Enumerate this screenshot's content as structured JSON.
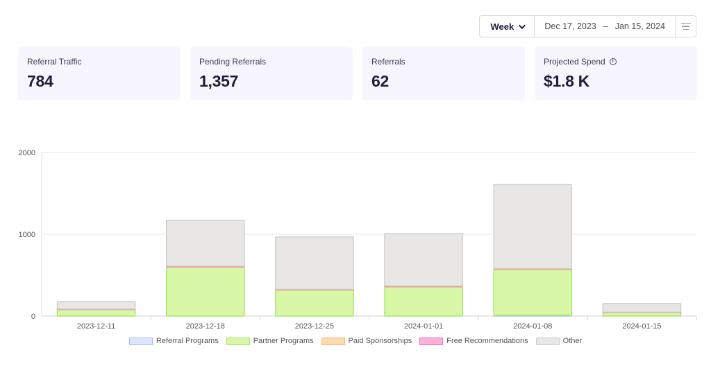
{
  "toolbar": {
    "period_label": "Week",
    "date_start": "Dec 17, 2023",
    "date_separator": "–",
    "date_end": "Jan 15, 2024"
  },
  "cards": [
    {
      "label": "Referral Traffic",
      "value": "784"
    },
    {
      "label": "Pending Referrals",
      "value": "1,357"
    },
    {
      "label": "Referrals",
      "value": "62"
    },
    {
      "label": "Projected Spend",
      "value": "$1.8 K",
      "info_icon": "info-icon"
    }
  ],
  "chart_data": {
    "type": "bar",
    "stacked": true,
    "categories": [
      "2023-12-11",
      "2023-12-18",
      "2023-12-25",
      "2024-01-01",
      "2024-01-08",
      "2024-01-15"
    ],
    "ylim": [
      0,
      2000
    ],
    "yticks": [
      0,
      1000,
      2000
    ],
    "grid": true,
    "legend_position": "bottom",
    "series": [
      {
        "name": "Referral Programs",
        "color": "#dbe5ff",
        "border": "#a9bef5",
        "values": [
          0,
          0,
          0,
          0,
          10,
          0
        ]
      },
      {
        "name": "Partner Programs",
        "color": "#d8f8a8",
        "border": "#a8e66a",
        "values": [
          80,
          595,
          315,
          355,
          560,
          45
        ]
      },
      {
        "name": "Paid Sponsorships",
        "color": "#ffd9b0",
        "border": "#f5b97a",
        "values": [
          3,
          10,
          8,
          8,
          8,
          2
        ]
      },
      {
        "name": "Free Recommendations",
        "color": "#ffb0dc",
        "border": "#e876b8",
        "values": [
          2,
          5,
          4,
          4,
          4,
          1
        ]
      },
      {
        "name": "Other",
        "color": "#e9e7e6",
        "border": "#cfcdcc",
        "values": [
          90,
          560,
          640,
          640,
          1025,
          105
        ]
      }
    ]
  }
}
